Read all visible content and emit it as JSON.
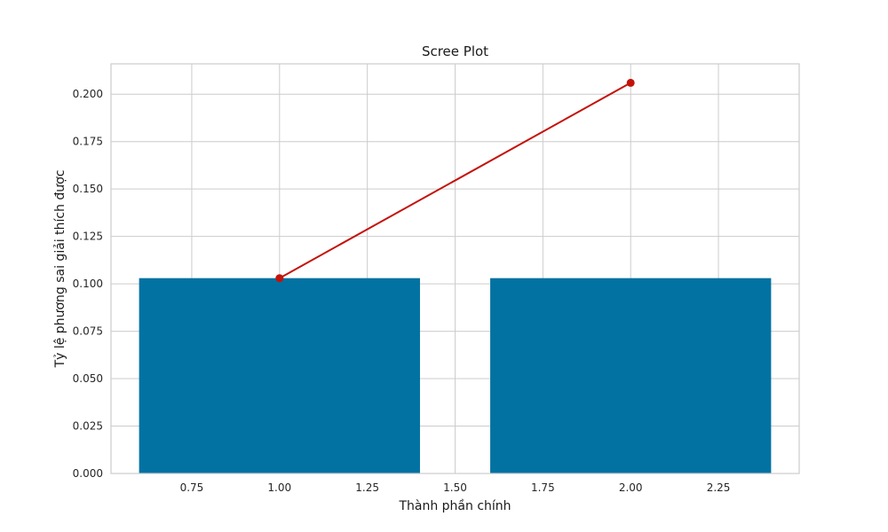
{
  "chart_data": {
    "type": "bar",
    "title": "Scree Plot",
    "xlabel": "Thành phần chính",
    "ylabel": "Tỷ lệ phương sai giải thích được",
    "xlim": [
      0.52,
      2.48
    ],
    "ylim": [
      0,
      0.216
    ],
    "xticks": [
      "0.75",
      "1.00",
      "1.25",
      "1.50",
      "1.75",
      "2.00",
      "2.25"
    ],
    "xtick_values": [
      0.75,
      1.0,
      1.25,
      1.5,
      1.75,
      2.0,
      2.25
    ],
    "yticks": [
      "0.000",
      "0.025",
      "0.050",
      "0.075",
      "0.100",
      "0.125",
      "0.150",
      "0.175",
      "0.200"
    ],
    "ytick_values": [
      0.0,
      0.025,
      0.05,
      0.075,
      0.1,
      0.125,
      0.15,
      0.175,
      0.2
    ],
    "grid": true,
    "bars": {
      "x": [
        1,
        2
      ],
      "values": [
        0.103,
        0.103
      ],
      "width": 0.8,
      "color": "#0272a2"
    },
    "line": {
      "x": [
        1,
        2
      ],
      "values": [
        0.103,
        0.206
      ],
      "color": "#c4120b",
      "marker": "circle"
    }
  }
}
